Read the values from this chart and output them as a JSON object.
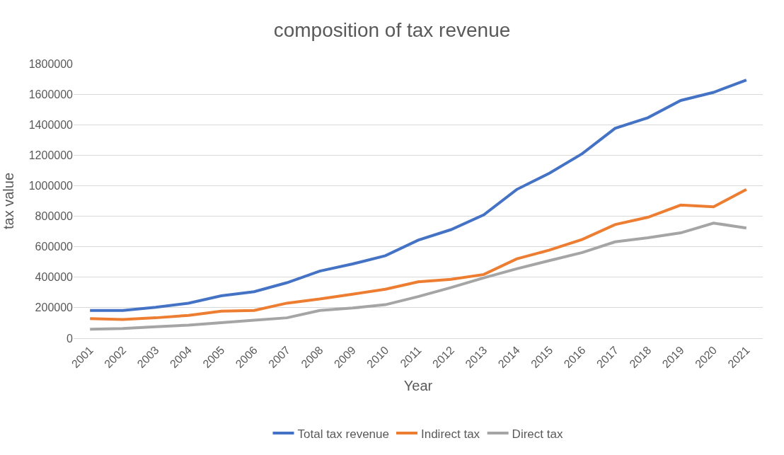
{
  "chart_data": {
    "type": "line",
    "title": "composition of tax revenue",
    "xlabel": "Year",
    "ylabel": "tax value",
    "categories": [
      "2001",
      "2002",
      "2003",
      "2004",
      "2005",
      "2006",
      "2007",
      "2008",
      "2009",
      "2010",
      "2011",
      "2012",
      "2013",
      "2014",
      "2015",
      "2016",
      "2017",
      "2018",
      "2019",
      "2020",
      "2021"
    ],
    "series": [
      {
        "name": "Total tax revenue",
        "color": "#4472c4",
        "values": [
          182000,
          182000,
          203000,
          230000,
          278000,
          305000,
          364000,
          440000,
          487000,
          541000,
          643000,
          712000,
          809000,
          975000,
          1082000,
          1210000,
          1376000,
          1446000,
          1559000,
          1612000,
          1693000
        ]
      },
      {
        "name": "Indirect tax",
        "color": "#ed7d31",
        "values": [
          129000,
          123000,
          134000,
          150000,
          177000,
          182000,
          230000,
          257000,
          289000,
          321000,
          370000,
          386000,
          418000,
          520000,
          578000,
          648000,
          745000,
          793000,
          873000,
          862000,
          975000
        ]
      },
      {
        "name": "Direct tax",
        "color": "#a5a5a5",
        "values": [
          59000,
          64000,
          75000,
          86000,
          102000,
          118000,
          134000,
          182000,
          198000,
          220000,
          273000,
          332000,
          396000,
          455000,
          509000,
          562000,
          632000,
          659000,
          691000,
          755000,
          723000
        ]
      }
    ],
    "ylim": [
      0,
      1800000
    ],
    "yticks": [
      0,
      200000,
      400000,
      600000,
      800000,
      1000000,
      1200000,
      1400000,
      1600000,
      1800000
    ],
    "grid": "y",
    "legend": "bottom",
    "marker": "none",
    "line_style": "solid"
  }
}
